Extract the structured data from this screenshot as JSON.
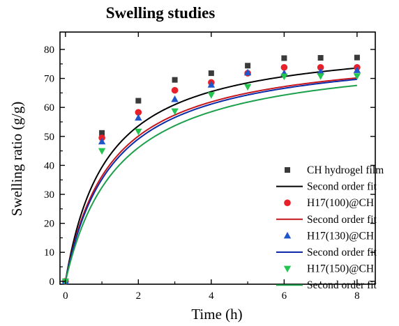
{
  "chart_data": {
    "type": "scatter",
    "title": "Swelling studies",
    "xlabel": "Time (h)",
    "ylabel": "Swelling ratio (g/g)",
    "xlim": [
      -0.15,
      8.5
    ],
    "ylim": [
      -1,
      86
    ],
    "xticks": [
      0,
      2,
      4,
      6,
      8
    ],
    "yticks": [
      0,
      10,
      20,
      30,
      40,
      50,
      60,
      70,
      80
    ],
    "grid": false,
    "legend_position": "bottom-right",
    "series": [
      {
        "name": "CH hydrogel film",
        "marker": "square",
        "color": "#3a3a3a",
        "x": [
          0,
          1,
          2,
          3,
          4,
          5,
          6,
          7,
          8
        ],
        "y": [
          0,
          51.2,
          62.3,
          69.5,
          71.8,
          74.4,
          77.0,
          77.1,
          77.2
        ],
        "fit": {
          "name": "Second order fit",
          "color": "#000000",
          "seq": 84,
          "k": 1.05
        }
      },
      {
        "name": "H17(100)@CH",
        "marker": "circle",
        "color": "#e8202a",
        "x": [
          0,
          1,
          2,
          3,
          4,
          5,
          6,
          7,
          8
        ],
        "y": [
          0,
          49.5,
          58.3,
          65.9,
          68.6,
          71.8,
          73.8,
          73.8,
          73.8
        ],
        "fit": {
          "name": "Second order fit",
          "color": "#c4161c",
          "seq": 81,
          "k": 1.0
        }
      },
      {
        "name": "H17(130)@CH",
        "marker": "triangle-up",
        "color": "#1f56c9",
        "x": [
          0,
          1,
          2,
          3,
          4,
          5,
          6,
          7,
          8
        ],
        "y": [
          0,
          48.2,
          56.4,
          62.8,
          67.8,
          72.0,
          71.8,
          72.3,
          72.8
        ],
        "fit": {
          "name": "Second order fit",
          "color": "#0a2aa8",
          "seq": 81,
          "k": 0.95
        }
      },
      {
        "name": "H17(150)@CH",
        "marker": "triangle-down",
        "color": "#23c44f",
        "x": [
          0,
          1,
          2,
          3,
          4,
          5,
          6,
          7,
          8
        ],
        "y": [
          0,
          45.0,
          51.7,
          58.7,
          64.3,
          67.1,
          70.7,
          70.8,
          70.8
        ],
        "fit": {
          "name": "Second order fit",
          "color": "#1aa04a",
          "seq": 80,
          "k": 0.85
        }
      }
    ]
  }
}
